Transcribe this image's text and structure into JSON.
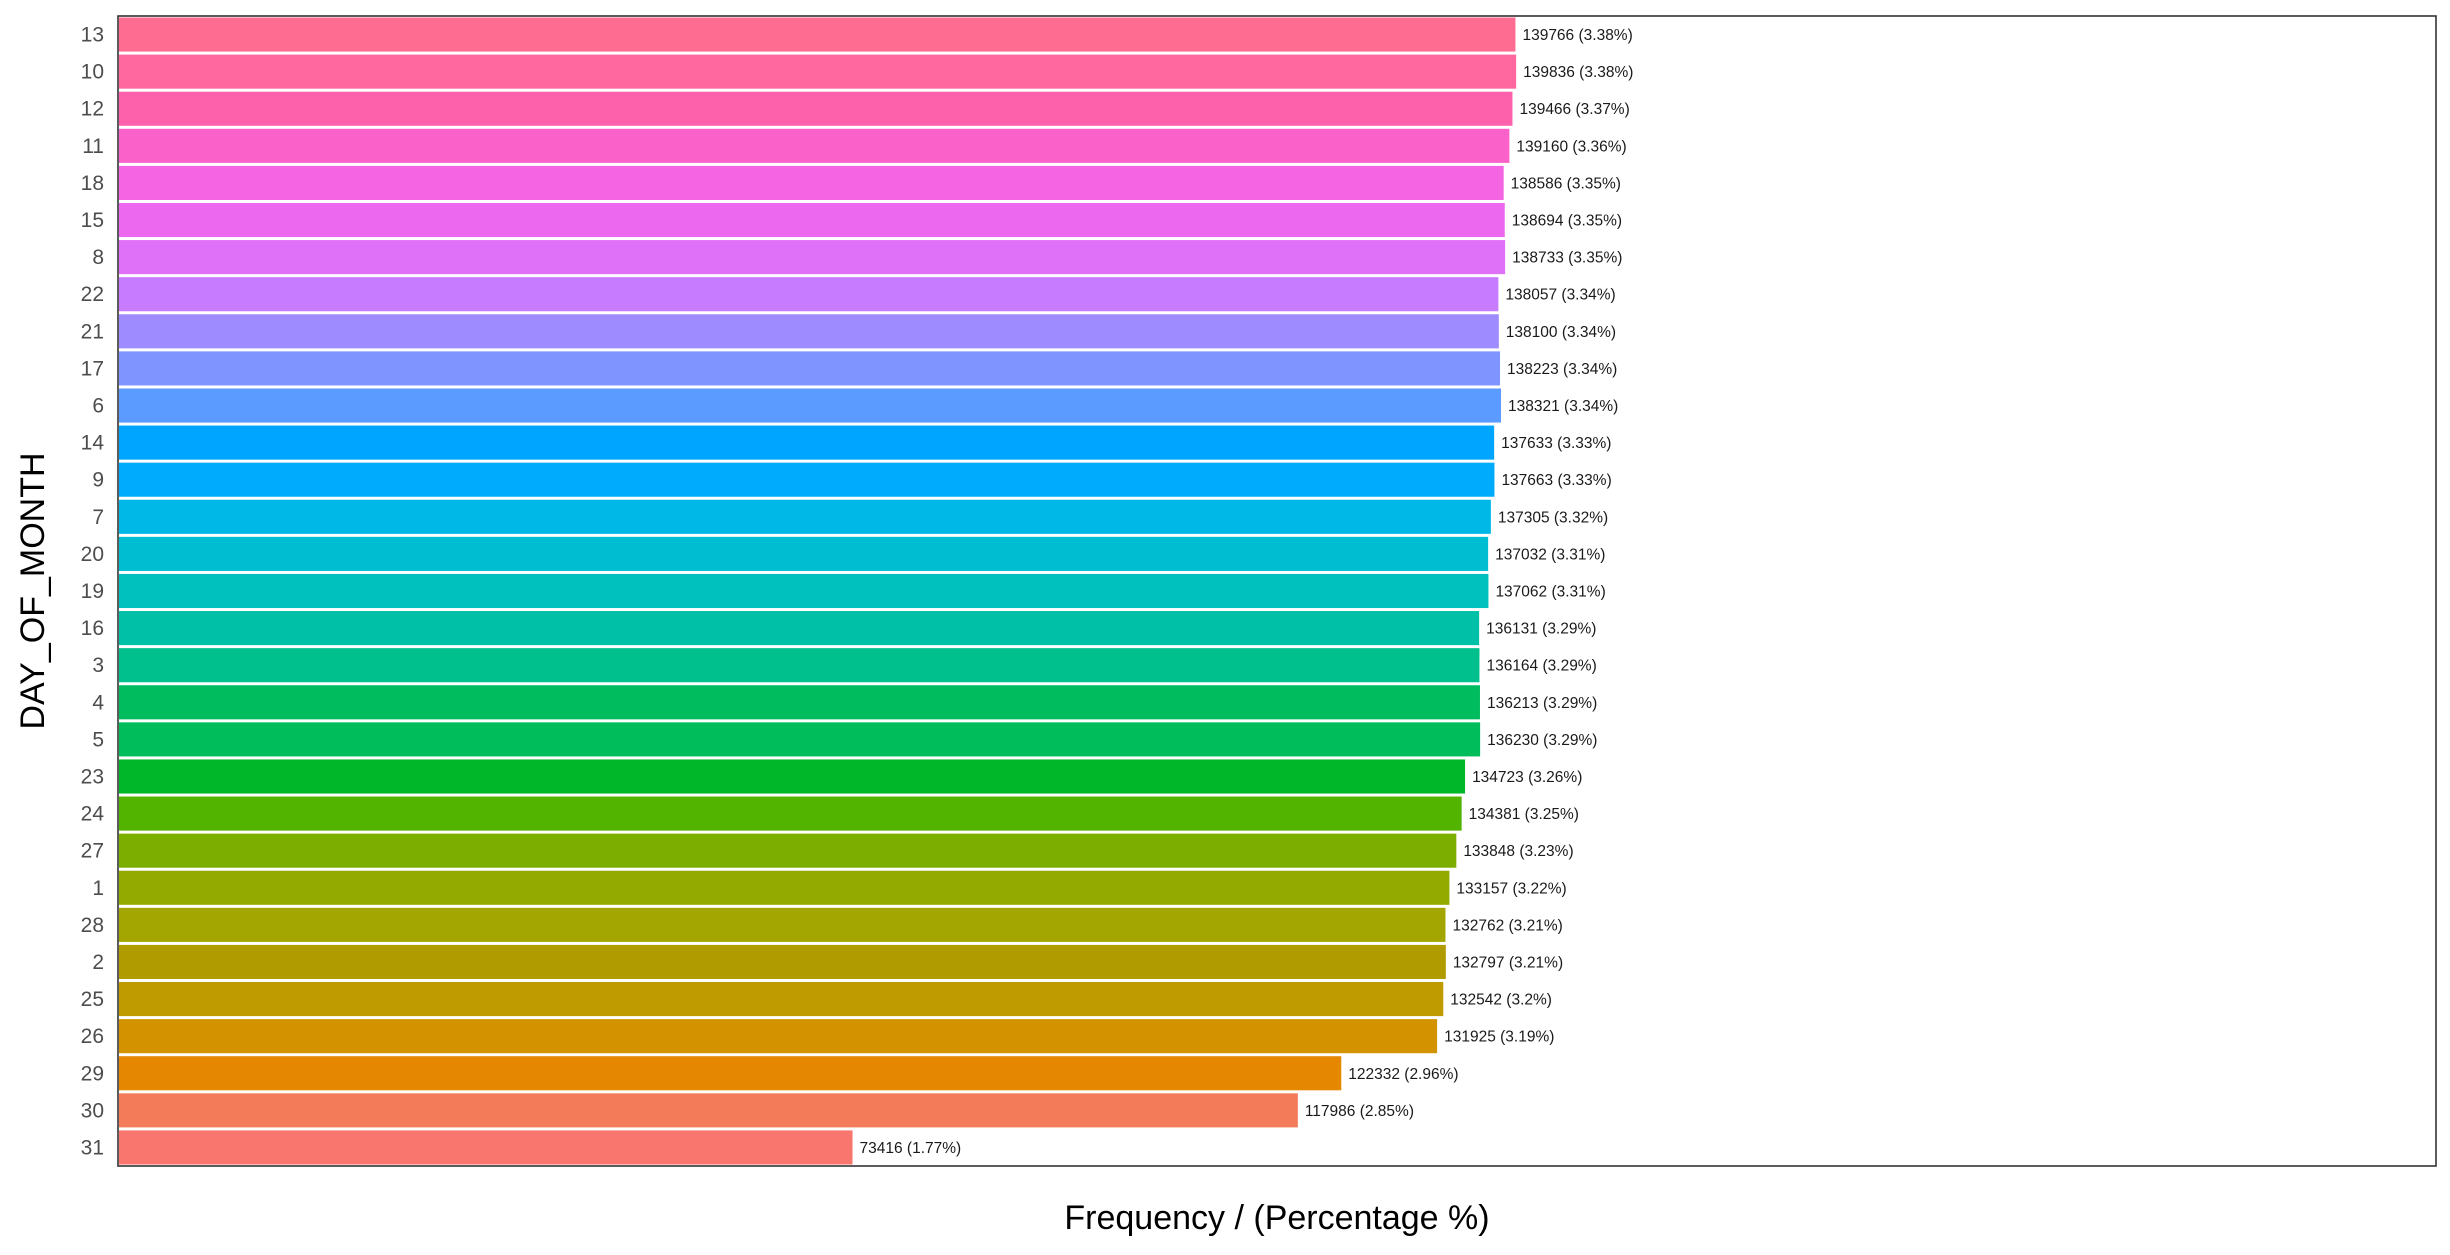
{
  "chart_data": {
    "type": "bar",
    "orientation": "horizontal",
    "xlabel": "Frequency / (Percentage %)",
    "ylabel": "DAY_OF_MONTH",
    "xlim": [
      0,
      232000
    ],
    "grid": false,
    "legend": "none",
    "categories": [
      "13",
      "10",
      "12",
      "11",
      "18",
      "15",
      "8",
      "22",
      "21",
      "17",
      "6",
      "14",
      "9",
      "7",
      "20",
      "19",
      "16",
      "3",
      "4",
      "5",
      "23",
      "24",
      "27",
      "1",
      "28",
      "2",
      "25",
      "26",
      "29",
      "30",
      "31"
    ],
    "values": [
      139766,
      139836,
      139466,
      139160,
      138586,
      138694,
      138733,
      138057,
      138100,
      138223,
      138321,
      137633,
      137663,
      137305,
      137032,
      137062,
      136131,
      136164,
      136213,
      136230,
      134723,
      134381,
      133848,
      133157,
      132762,
      132797,
      132542,
      131925,
      122332,
      117986,
      73416
    ],
    "labels": [
      "139766 (3.38%)",
      "139836 (3.38%)",
      "139466 (3.37%)",
      "139160 (3.36%)",
      "138586 (3.35%)",
      "138694 (3.35%)",
      "138733 (3.35%)",
      "138057 (3.34%)",
      "138100 (3.34%)",
      "138223 (3.34%)",
      "138321 (3.34%)",
      "137633 (3.33%)",
      "137663 (3.33%)",
      "137305 (3.32%)",
      "137032 (3.31%)",
      "137062 (3.31%)",
      "136131 (3.29%)",
      "136164 (3.29%)",
      "136213 (3.29%)",
      "136230 (3.29%)",
      "134723 (3.26%)",
      "134381 (3.25%)",
      "133848 (3.23%)",
      "133157 (3.22%)",
      "132762 (3.21%)",
      "132797 (3.21%)",
      "132542 (3.2%)",
      "131925 (3.19%)",
      "122332 (2.96%)",
      "117986 (2.85%)",
      "73416 (1.77%)"
    ],
    "colors": [
      "#FF6C91",
      "#FF689F",
      "#FE61AC",
      "#FA62C9",
      "#F564E3",
      "#EC69EF",
      "#DF70F8",
      "#C77CFF",
      "#9E8BFF",
      "#8094FF",
      "#5B9BFF",
      "#00A5FF",
      "#00ABFD",
      "#00B8E7",
      "#00BDD2",
      "#00C1BD",
      "#00C1A7",
      "#00C08D",
      "#00BC5F",
      "#00BD5C",
      "#00B72A",
      "#53B400",
      "#7CAE00",
      "#93AA00",
      "#A3A500",
      "#B09C00",
      "#C09B00",
      "#D39200",
      "#E58700",
      "#F37B59",
      "#F8766D"
    ]
  }
}
